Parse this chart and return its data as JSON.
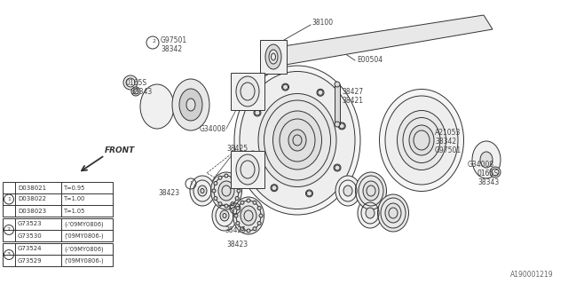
{
  "bg_color": "#ffffff",
  "line_color": "#333333",
  "label_color": "#444444",
  "part_number_ref": "A190001219",
  "parts_table": {
    "circle1_rows": [
      [
        "D038021",
        "T=0.95"
      ],
      [
        "D038022",
        "T=1.00"
      ],
      [
        "D038023",
        "T=1.05"
      ]
    ],
    "circle2_rows": [
      [
        "G73523",
        "(-'09MY0806)"
      ],
      [
        "G73530",
        "('09MY0806-)"
      ]
    ],
    "circle3_rows": [
      [
        "G73524",
        "(-'09MY0806)"
      ],
      [
        "G73529",
        "('09MY0806-)"
      ]
    ]
  }
}
